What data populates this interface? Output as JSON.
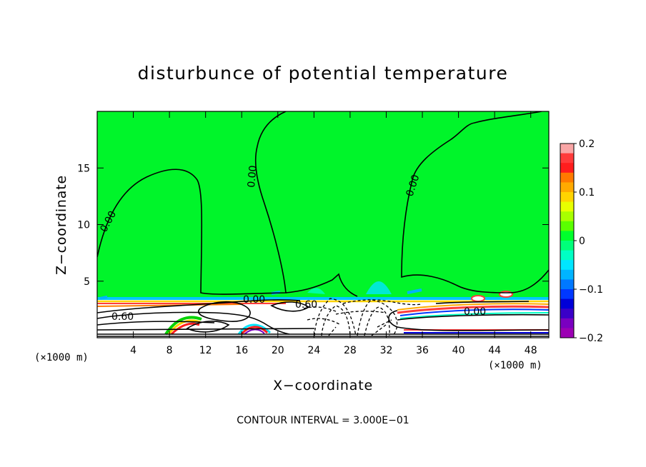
{
  "chart_data": {
    "type": "contour",
    "title": "disturbunce of potential temperature",
    "xlabel": "X−coordinate",
    "ylabel": "Z−coordinate",
    "x_unit_label_left": "(×1000 m)",
    "x_unit_label_right": "(×1000 m)",
    "x_ticks": [
      4,
      8,
      12,
      16,
      20,
      24,
      28,
      32,
      36,
      40,
      44,
      48
    ],
    "y_ticks": [
      5,
      10,
      15
    ],
    "xlim": [
      0,
      50
    ],
    "ylim": [
      0,
      20
    ],
    "colorbar": {
      "ticks": [
        "0.2",
        "0.1",
        "0",
        "−0.1",
        "−0.2"
      ],
      "range": [
        -0.2,
        0.2
      ],
      "colors": [
        "#f9a6a6",
        "#ff3b3b",
        "#ff1d1d",
        "#ff7a00",
        "#ffaa00",
        "#ffd400",
        "#e8ff00",
        "#a8ff00",
        "#5aff00",
        "#00ff2c",
        "#00ff7a",
        "#00ffc4",
        "#00e6ff",
        "#00b4ff",
        "#0078ff",
        "#0038ff",
        "#0000d8",
        "#3a00c8",
        "#7a00c0",
        "#9c00b4"
      ]
    },
    "contour_labels": [
      {
        "text": "0.00",
        "x": 1.3,
        "z": 10.4
      },
      {
        "text": "0.00",
        "x": 18.0,
        "z": 15.2
      },
      {
        "text": "0.00",
        "x": 35.2,
        "z": 13.8
      },
      {
        "text": "0.00",
        "x": 17.2,
        "z": 3.6
      },
      {
        "text": "0.60",
        "x": 1.3,
        "z": 2.0
      },
      {
        "text": "0.60",
        "x": 22.3,
        "z": 3.1
      },
      {
        "text": "0.00",
        "x": 40.9,
        "z": 2.4
      }
    ],
    "contour_interval_text": "CONTOUR INTERVAL = 3.000E−01"
  }
}
